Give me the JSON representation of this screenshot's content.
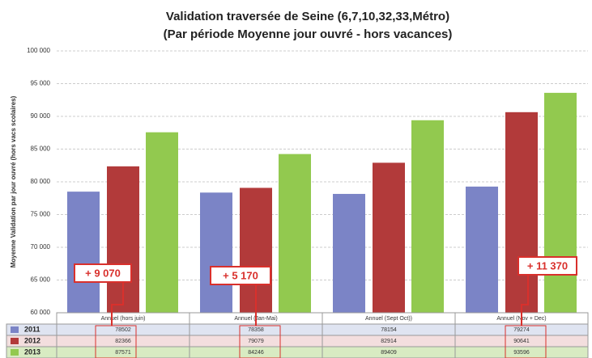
{
  "chart_data": {
    "type": "bar",
    "title": "Validation traversée de Seine (6,7,10,32,33,Métro)",
    "subtitle": "(Par période Moyenne jour ouvré - hors vacances)",
    "y_label": "Moyenne Validation par jour ouvré (hors vacs scolaires)",
    "categories": [
      "Annuel (hors juin)",
      "Annuel (Jan-Mai)",
      "Annuel (Sept Oct))",
      "Annuel (Nov + Dec)"
    ],
    "series": [
      {
        "name": "2011",
        "color": "#7b84c6",
        "values": [
          78502,
          78358,
          78154,
          79274
        ]
      },
      {
        "name": "2012",
        "color": "#b23a3a",
        "values": [
          82366,
          79079,
          82914,
          90641
        ]
      },
      {
        "name": "2013",
        "color": "#92c94f",
        "values": [
          87571,
          84246,
          89409,
          93596
        ]
      }
    ],
    "ylim": [
      60000,
      100000
    ],
    "yticks": [
      {
        "value": 60000,
        "label": "60 000"
      },
      {
        "value": 65000,
        "label": "65 000"
      },
      {
        "value": 70000,
        "label": "70 000"
      },
      {
        "value": 75000,
        "label": "75 000"
      },
      {
        "value": 80000,
        "label": "80 000"
      },
      {
        "value": 85000,
        "label": "85 000"
      },
      {
        "value": 90000,
        "label": "90 000"
      },
      {
        "value": 95000,
        "label": "95 000"
      },
      {
        "value": 100000,
        "label": "100 000"
      }
    ],
    "grid": true,
    "annotations": [
      "+ 9 070",
      "+ 5 170",
      "+ 11 370"
    ]
  }
}
